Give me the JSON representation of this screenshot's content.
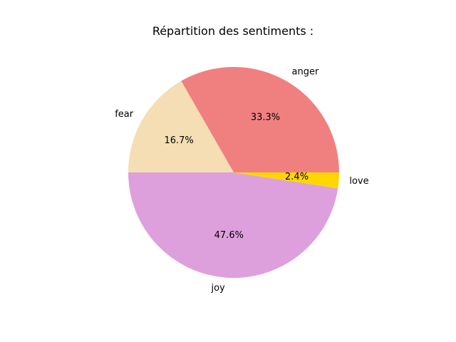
{
  "chart_data": {
    "type": "pie",
    "title": "Répartition des sentiments :",
    "start_angle": "0° (3 o'clock), counter-clockwise",
    "slices": [
      {
        "label": "anger",
        "value": 33.3,
        "pct_label": "33.3%",
        "color": "#F08080"
      },
      {
        "label": "fear",
        "value": 16.7,
        "pct_label": "16.7%",
        "color": "#F5DEB3"
      },
      {
        "label": "joy",
        "value": 47.6,
        "pct_label": "47.6%",
        "color": "#DDA0DD"
      },
      {
        "label": "love",
        "value": 2.4,
        "pct_label": "2.4%",
        "color": "#FFD700"
      }
    ]
  }
}
